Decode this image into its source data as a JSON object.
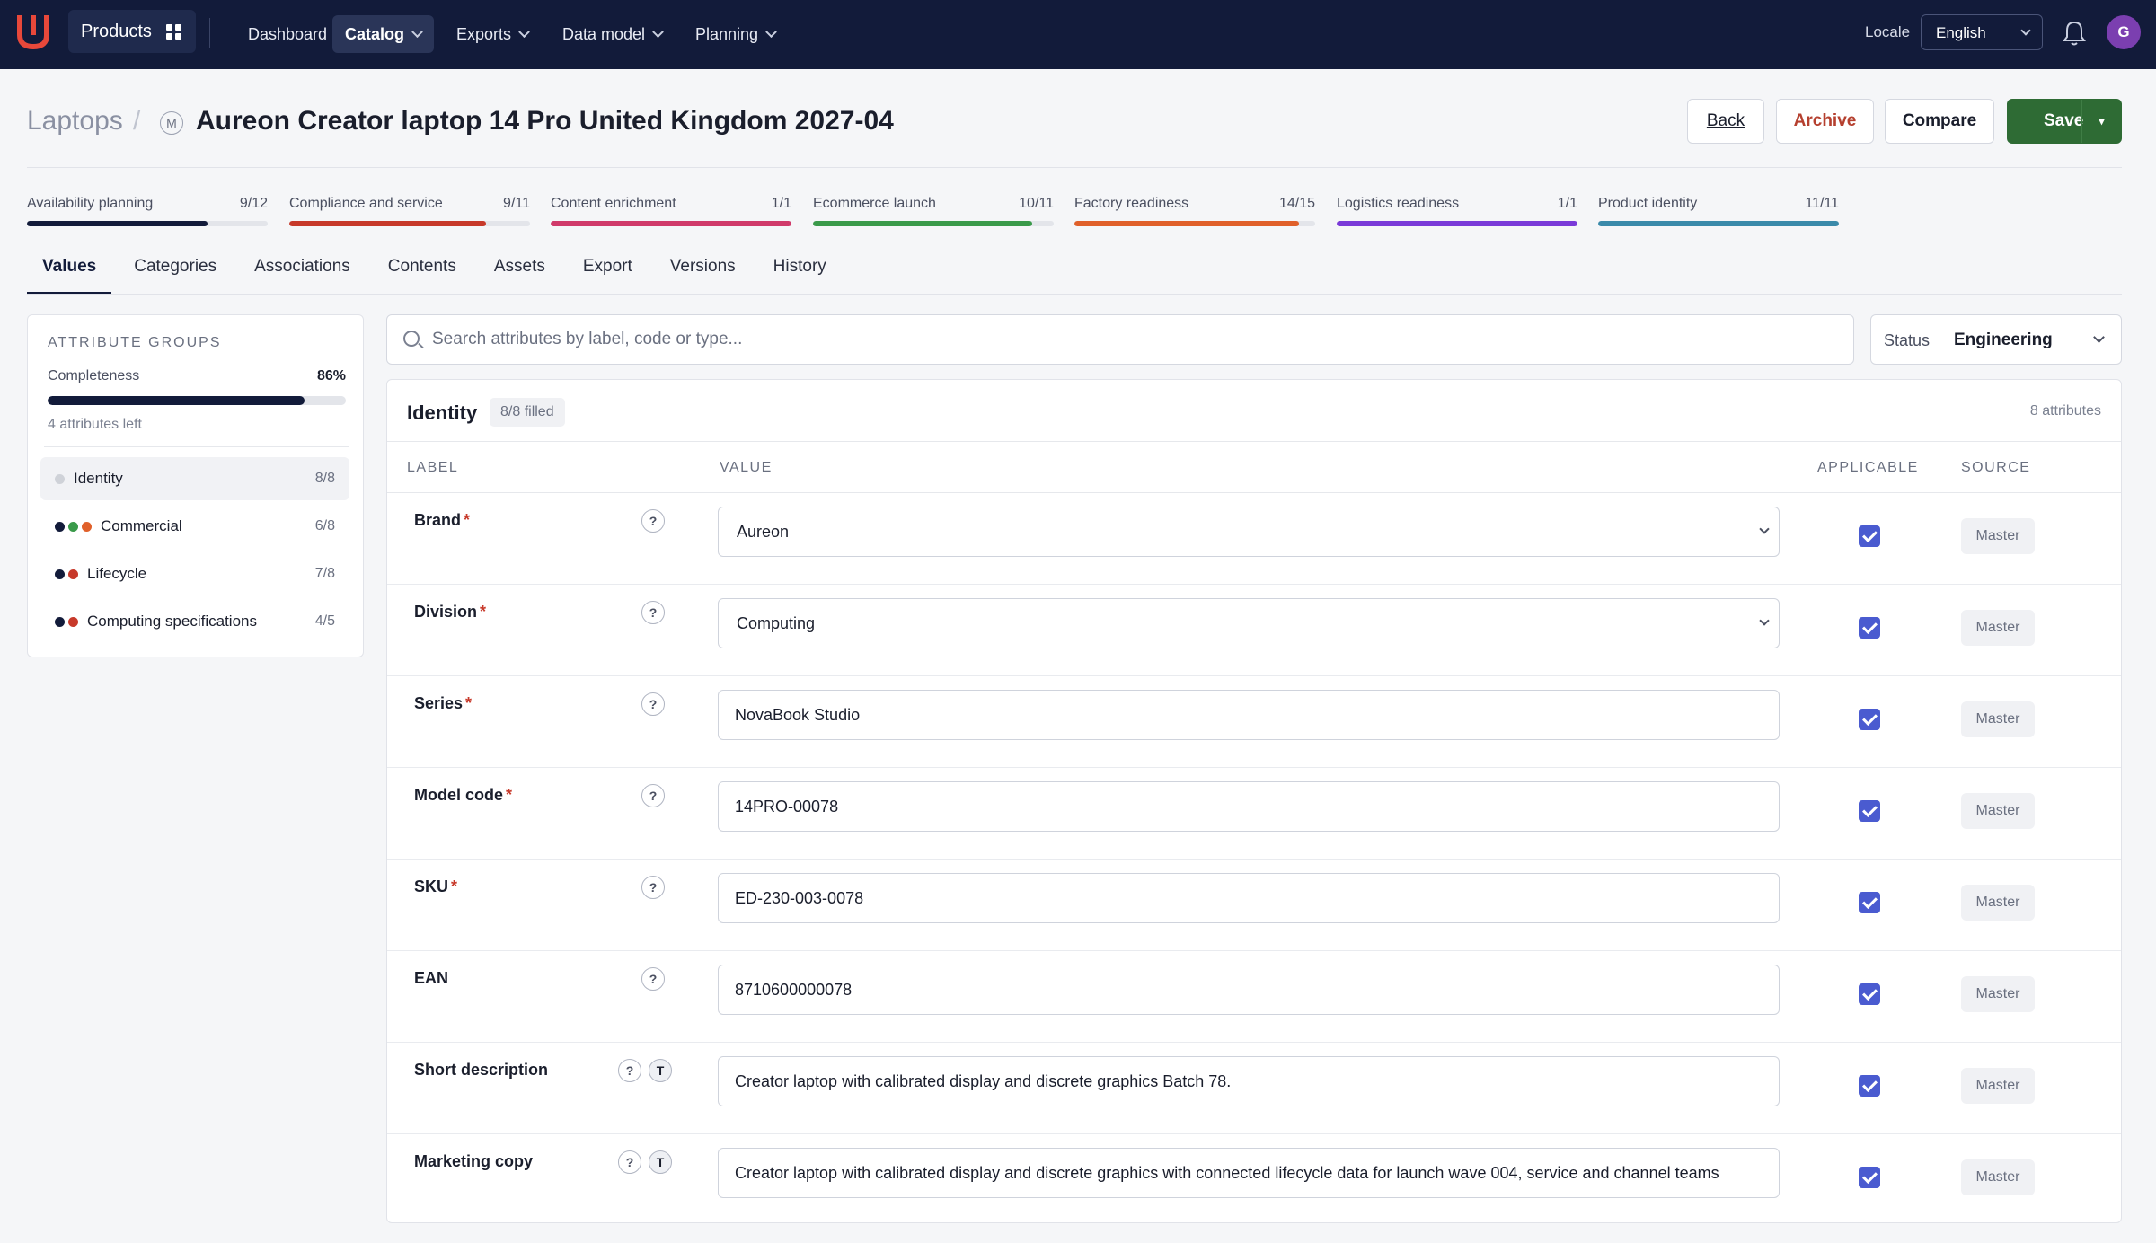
{
  "nav": {
    "products": "Products",
    "items": [
      {
        "label": "Dashboard",
        "has_menu": false,
        "active": false
      },
      {
        "label": "Catalog",
        "has_menu": true,
        "active": true
      },
      {
        "label": "Exports",
        "has_menu": true,
        "active": false
      },
      {
        "label": "Data model",
        "has_menu": true,
        "active": false
      },
      {
        "label": "Planning",
        "has_menu": true,
        "active": false
      }
    ],
    "locale_label": "Locale",
    "locale_value": "English",
    "avatar_initial": "G"
  },
  "header": {
    "breadcrumb": "Laptops",
    "separator": "/",
    "badge": "M",
    "title": "Aureon Creator laptop 14 Pro United Kingdom 2027-04",
    "back": "Back",
    "archive": "Archive",
    "compare": "Compare",
    "save": "Save",
    "save_menu": "▾"
  },
  "progress": [
    {
      "label": "Availability planning",
      "count": "9/12",
      "fraction": 0.75,
      "color": "#121b3a"
    },
    {
      "label": "Compliance and service",
      "count": "9/11",
      "fraction": 0.818,
      "color": "#c7392a"
    },
    {
      "label": "Content enrichment",
      "count": "1/1",
      "fraction": 1.0,
      "color": "#d03a6a"
    },
    {
      "label": "Ecommerce launch",
      "count": "10/11",
      "fraction": 0.909,
      "color": "#3a9a4a"
    },
    {
      "label": "Factory readiness",
      "count": "14/15",
      "fraction": 0.933,
      "color": "#e0602a"
    },
    {
      "label": "Logistics readiness",
      "count": "1/1",
      "fraction": 1.0,
      "color": "#7a3ad8"
    },
    {
      "label": "Product identity",
      "count": "11/11",
      "fraction": 1.0,
      "color": "#3a8aaa"
    }
  ],
  "tabs": [
    "Values",
    "Categories",
    "Associations",
    "Contents",
    "Assets",
    "Export",
    "Versions",
    "History"
  ],
  "groups_panel": {
    "heading": "ATTRIBUTE GROUPS",
    "completeness_label": "Completeness",
    "completeness_value": "86%",
    "completeness_fraction": 0.86,
    "left_text": "4 attributes left",
    "groups": [
      {
        "label": "Identity",
        "count": "8/8",
        "dots": [
          "#cfd2d8"
        ],
        "active": true
      },
      {
        "label": "Commercial",
        "count": "6/8",
        "dots": [
          "#121b3a",
          "#3a9a4a",
          "#e0602a"
        ],
        "active": false
      },
      {
        "label": "Lifecycle",
        "count": "7/8",
        "dots": [
          "#121b3a",
          "#c7392a"
        ],
        "active": false
      },
      {
        "label": "Computing specifications",
        "count": "4/5",
        "dots": [
          "#121b3a",
          "#c7392a"
        ],
        "active": false
      }
    ]
  },
  "search": {
    "placeholder": "Search attributes by label, code or type..."
  },
  "status": {
    "label": "Status",
    "value": "Engineering"
  },
  "section": {
    "title": "Identity",
    "filled": "8/8 filled",
    "count": "8 attributes",
    "columns": {
      "label": "LABEL",
      "value": "VALUE",
      "applicable": "APPLICABLE",
      "source": "SOURCE"
    },
    "help_glyph": "?",
    "translate_glyph": "T",
    "rows": [
      {
        "label": "Brand",
        "required": true,
        "value": "Aureon",
        "type": "select",
        "translatable": false,
        "source": "Master"
      },
      {
        "label": "Division",
        "required": true,
        "value": "Computing",
        "type": "select",
        "translatable": false,
        "source": "Master"
      },
      {
        "label": "Series",
        "required": true,
        "value": "NovaBook Studio",
        "type": "text",
        "translatable": false,
        "source": "Master"
      },
      {
        "label": "Model code",
        "required": true,
        "value": "14PRO-00078",
        "type": "text",
        "translatable": false,
        "source": "Master"
      },
      {
        "label": "SKU",
        "required": true,
        "value": "ED-230-003-0078",
        "type": "text",
        "translatable": false,
        "source": "Master"
      },
      {
        "label": "EAN",
        "required": false,
        "value": "8710600000078",
        "type": "text",
        "translatable": false,
        "source": "Master"
      },
      {
        "label": "Short description",
        "required": false,
        "value": "Creator laptop with calibrated display and discrete graphics Batch 78.",
        "type": "text",
        "translatable": true,
        "source": "Master"
      },
      {
        "label": "Marketing copy",
        "required": false,
        "value": "Creator laptop with calibrated display and discrete graphics with connected lifecycle data for launch wave 004, service and channel teams",
        "type": "text",
        "translatable": true,
        "source": "Master"
      }
    ]
  }
}
